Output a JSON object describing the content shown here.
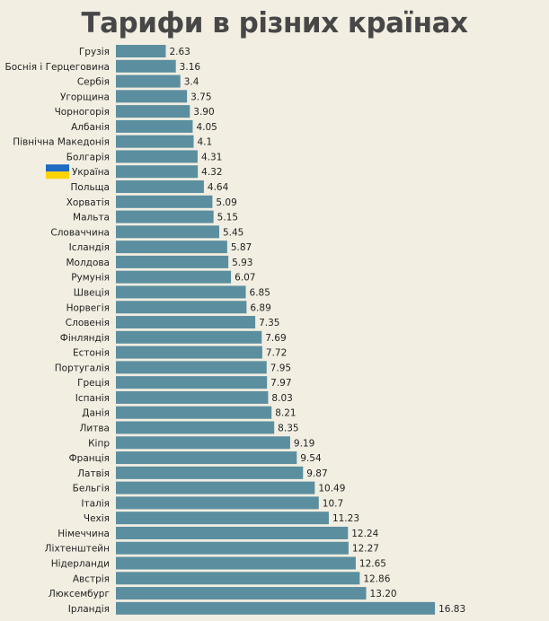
{
  "chart_data": {
    "type": "bar",
    "orientation": "horizontal",
    "title": "Тарифи в різних країнах",
    "xlabel": "",
    "ylabel": "",
    "xlim": [
      0,
      17
    ],
    "grid": false,
    "legend": "none",
    "bar_color": "#5b8f9f",
    "highlight_category": "Україна",
    "highlight_icon": "ukraine-flag-icon",
    "flag_colors": {
      "top": "#1f6bc2",
      "bottom": "#ffd400"
    },
    "categories": [
      "Грузія",
      "Боснія і Герцеговина",
      "Сербія",
      "Угорщина",
      "Чорногорія",
      "Албанія",
      "Північна Македонія",
      "Болгарія",
      "Україна",
      "Польща",
      "Хорватія",
      "Мальта",
      "Словаччина",
      "Ісландія",
      "Молдова",
      "Румунія",
      "Швеція",
      "Норвегія",
      "Словенія",
      "Фінляндія",
      "Естонія",
      "Португалія",
      "Греція",
      "Іспанія",
      "Данія",
      "Литва",
      "Кіпр",
      "Франція",
      "Латвія",
      "Бельгія",
      "Італія",
      "Чехія",
      "Німеччина",
      "Ліхтенштейн",
      "Нідерланди",
      "Австрія",
      "Люксембург",
      "Ірландія"
    ],
    "values": [
      2.63,
      3.16,
      3.4,
      3.75,
      3.9,
      4.05,
      4.1,
      4.31,
      4.32,
      4.64,
      5.09,
      5.15,
      5.45,
      5.87,
      5.93,
      6.07,
      6.85,
      6.89,
      7.35,
      7.69,
      7.72,
      7.95,
      7.97,
      8.03,
      8.21,
      8.35,
      9.19,
      9.54,
      9.87,
      10.49,
      10.7,
      11.23,
      12.24,
      12.27,
      12.65,
      12.86,
      13.2,
      16.83
    ],
    "value_labels": [
      "2.63",
      "3.16",
      "3.4",
      "3.75",
      "3.90",
      "4.05",
      "4.1",
      "4.31",
      "4.32",
      "4.64",
      "5.09",
      "5.15",
      "5.45",
      "5.87",
      "5.93",
      "6.07",
      "6.85",
      "6.89",
      "7.35",
      "7.69",
      "7.72",
      "7.95",
      "7.97",
      "8.03",
      "8.21",
      "8.35",
      "9.19",
      "9.54",
      "9.87",
      "10.49",
      "10.7",
      "11.23",
      "12.24",
      "12.27",
      "12.65",
      "12.86",
      "13.20",
      "16.83"
    ]
  }
}
